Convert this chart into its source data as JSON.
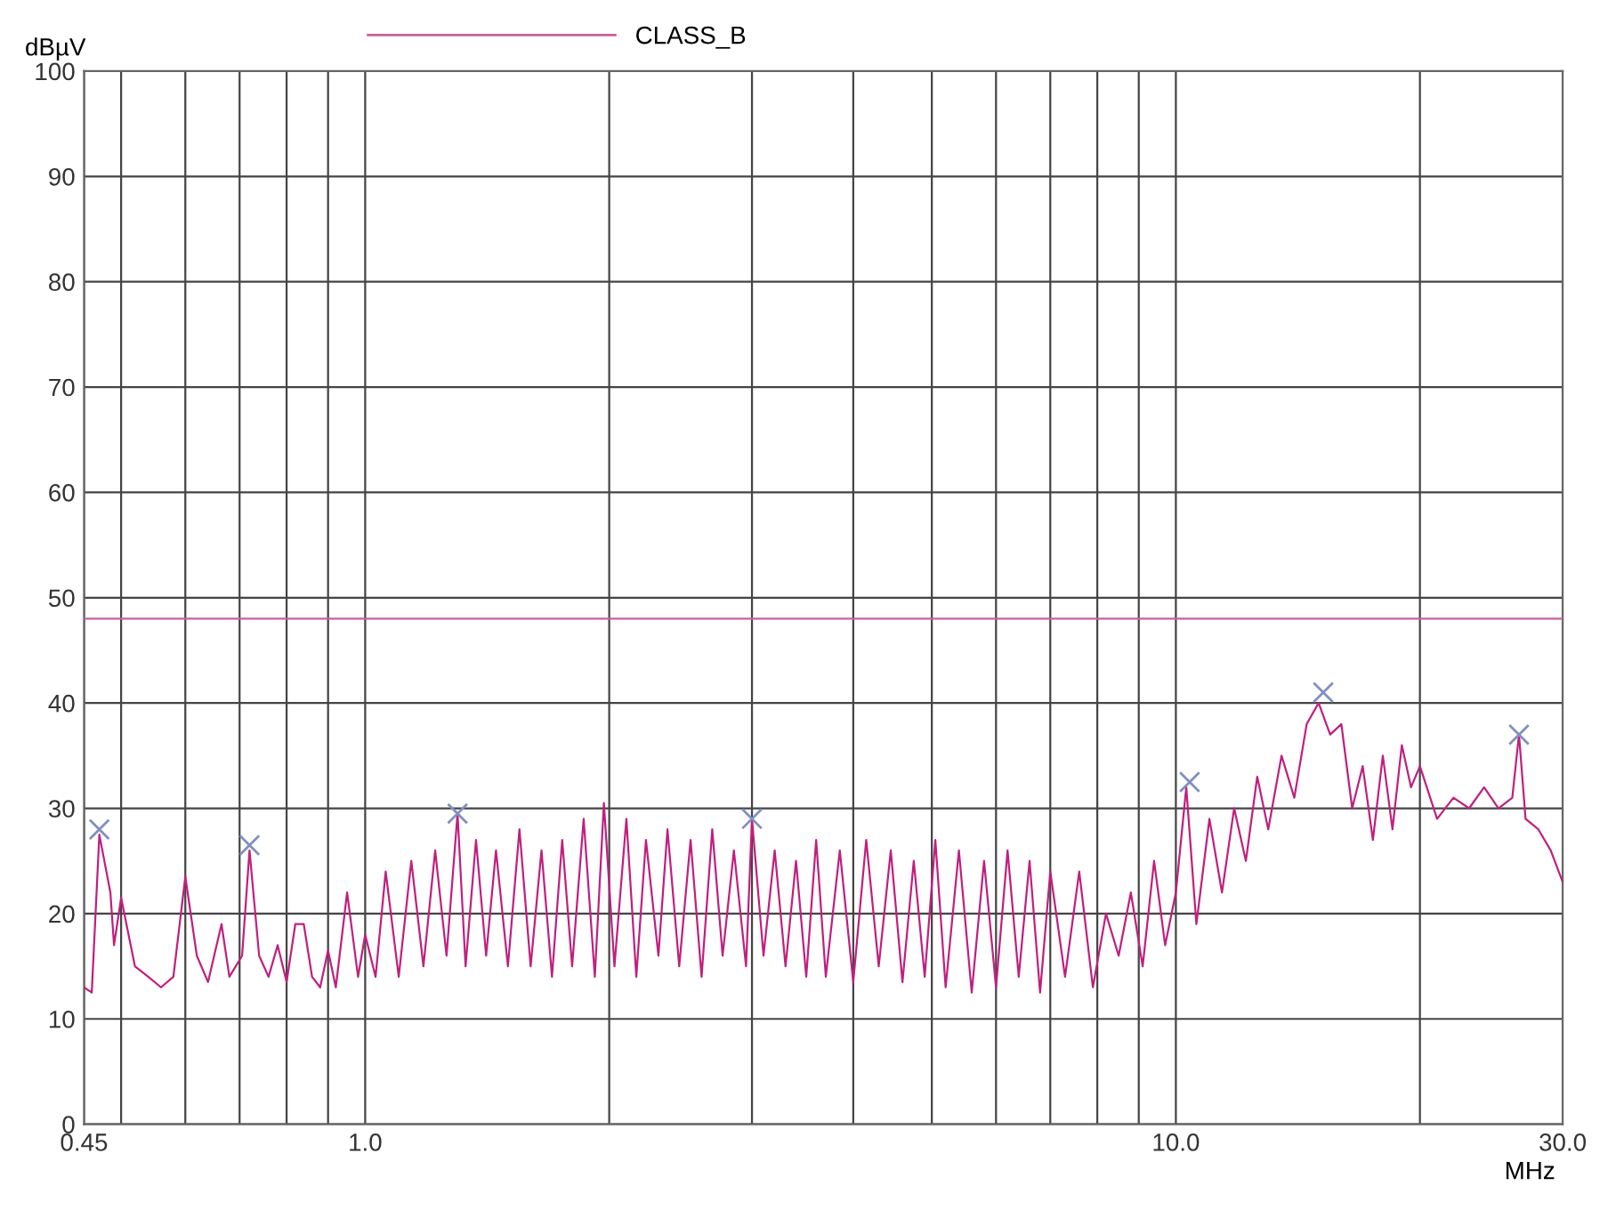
{
  "chart_data": {
    "type": "line",
    "ylabel": "dBµV",
    "xlabel": "MHz",
    "log": "x",
    "grid": true,
    "legend": "top",
    "xlim": [
      0.45,
      30.0
    ],
    "xticks": [
      {
        "value": 0.45,
        "label": "0.45"
      },
      {
        "value": 0.5,
        "label": null
      },
      {
        "value": 0.6,
        "label": null
      },
      {
        "value": 0.7,
        "label": null
      },
      {
        "value": 0.8,
        "label": null
      },
      {
        "value": 0.9,
        "label": null
      },
      {
        "value": 1.0,
        "label": "1.0"
      },
      {
        "value": 2.0,
        "label": null
      },
      {
        "value": 3.0,
        "label": null
      },
      {
        "value": 4.0,
        "label": null
      },
      {
        "value": 5.0,
        "label": null
      },
      {
        "value": 6.0,
        "label": null
      },
      {
        "value": 7.0,
        "label": null
      },
      {
        "value": 8.0,
        "label": null
      },
      {
        "value": 9.0,
        "label": null
      },
      {
        "value": 10.0,
        "label": "10.0"
      },
      {
        "value": 20.0,
        "label": null
      },
      {
        "value": 30.0,
        "label": "30.0"
      }
    ],
    "ylim": [
      0,
      100
    ],
    "yticks": [
      0,
      10,
      20,
      30,
      40,
      50,
      60,
      70,
      80,
      90,
      100
    ],
    "series": [
      {
        "name": "CLASS_B",
        "color": "#c8609a",
        "x": [
          0.45,
          30.0
        ],
        "values": [
          48,
          48
        ]
      },
      {
        "color": "#c0207e",
        "x": [
          0.45,
          0.46,
          0.47,
          0.485,
          0.49,
          0.5,
          0.52,
          0.54,
          0.56,
          0.58,
          0.6,
          0.62,
          0.64,
          0.665,
          0.68,
          0.705,
          0.72,
          0.74,
          0.76,
          0.78,
          0.8,
          0.82,
          0.84,
          0.86,
          0.88,
          0.9,
          0.92,
          0.95,
          0.98,
          1.0,
          1.03,
          1.06,
          1.1,
          1.14,
          1.18,
          1.22,
          1.26,
          1.3,
          1.33,
          1.37,
          1.41,
          1.45,
          1.5,
          1.55,
          1.6,
          1.65,
          1.7,
          1.75,
          1.8,
          1.86,
          1.92,
          1.97,
          2.03,
          2.1,
          2.16,
          2.22,
          2.3,
          2.36,
          2.44,
          2.52,
          2.6,
          2.68,
          2.76,
          2.85,
          2.95,
          3.0,
          3.1,
          3.2,
          3.3,
          3.4,
          3.5,
          3.6,
          3.7,
          3.85,
          4.0,
          4.15,
          4.3,
          4.45,
          4.6,
          4.75,
          4.9,
          5.05,
          5.2,
          5.4,
          5.6,
          5.8,
          6.0,
          6.2,
          6.4,
          6.6,
          6.8,
          7.0,
          7.3,
          7.6,
          7.9,
          8.2,
          8.5,
          8.8,
          9.1,
          9.4,
          9.7,
          10.0,
          10.3,
          10.6,
          11.0,
          11.4,
          11.8,
          12.2,
          12.6,
          13.0,
          13.5,
          14.0,
          14.5,
          15.0,
          15.5,
          16.0,
          16.5,
          17.0,
          17.5,
          18.0,
          18.5,
          19.0,
          19.5,
          20.0,
          21.0,
          22.0,
          23.0,
          24.0,
          25.0,
          26.0,
          26.5,
          27.0,
          28.0,
          29.0,
          30.0
        ],
        "values": [
          13,
          12.5,
          27.5,
          22,
          17,
          21.5,
          15,
          14,
          13,
          14,
          23.5,
          16,
          13.5,
          19,
          14,
          16,
          26,
          16,
          14,
          17,
          13.5,
          19,
          19,
          14,
          13,
          16.5,
          13,
          22,
          14,
          18,
          14,
          24,
          14,
          25,
          15,
          26,
          16,
          29.5,
          15,
          27,
          16,
          26,
          15,
          28,
          15,
          26,
          14,
          27,
          15,
          29,
          14,
          30.5,
          15,
          29,
          14,
          27,
          16,
          28,
          15,
          27,
          14,
          28,
          16,
          26,
          15,
          29,
          16,
          26,
          15,
          25,
          14,
          27,
          14,
          26,
          13.5,
          27,
          15,
          26,
          13.5,
          25,
          14,
          27,
          13,
          26,
          12.5,
          25,
          13,
          26,
          14,
          25,
          12.5,
          24,
          14,
          24,
          13,
          20,
          16,
          22,
          15,
          25,
          17,
          22,
          32,
          19,
          29,
          22,
          30,
          25,
          33,
          28,
          35,
          31,
          38,
          40,
          37,
          38,
          30,
          34,
          27,
          35,
          28,
          36,
          32,
          34,
          29,
          31,
          30,
          32,
          30,
          31,
          37,
          29,
          28,
          26,
          23
        ]
      },
      {
        "type": "scatter",
        "marker": "cross",
        "color": "#8090c0",
        "x": [
          0.47,
          0.72,
          1.3,
          3.0,
          10.4,
          15.2,
          26.5
        ],
        "values": [
          28,
          26.5,
          29.5,
          29,
          32.5,
          41,
          37
        ]
      }
    ]
  }
}
